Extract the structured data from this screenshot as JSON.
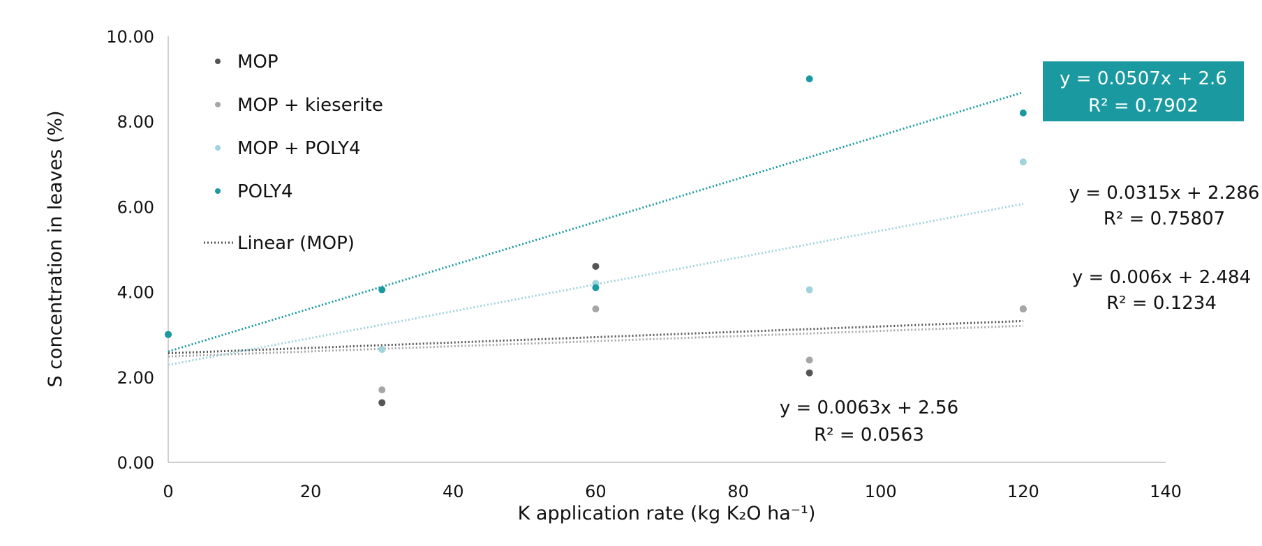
{
  "chart_data": {
    "type": "scatter",
    "xlabel": "K application rate (kg K₂O ha⁻¹)",
    "ylabel": "S concentration in leaves (%)",
    "xlim": [
      0,
      140
    ],
    "ylim": [
      0,
      10
    ],
    "x_ticks": [
      "0",
      "20",
      "40",
      "60",
      "80",
      "100",
      "120",
      "140"
    ],
    "y_ticks": [
      "0.00",
      "2.00",
      "4.00",
      "6.00",
      "8.00",
      "10.00"
    ],
    "grid": false,
    "legend_position": "top-left",
    "series": [
      {
        "name": "MOP",
        "color": "#555555",
        "points": [
          {
            "x": 0,
            "y": 3.0
          },
          {
            "x": 30,
            "y": 1.4
          },
          {
            "x": 60,
            "y": 4.6
          },
          {
            "x": 90,
            "y": 2.1
          },
          {
            "x": 120,
            "y": 3.6
          }
        ],
        "trend": {
          "slope": 0.0063,
          "intercept": 2.56,
          "color": "#555555",
          "equation": "y = 0.0063x + 2.56",
          "r2": "R² = 0.0563"
        }
      },
      {
        "name": "MOP + kieserite",
        "color": "#a6a6a6",
        "points": [
          {
            "x": 0,
            "y": 3.0
          },
          {
            "x": 30,
            "y": 1.7
          },
          {
            "x": 60,
            "y": 3.6
          },
          {
            "x": 90,
            "y": 2.4
          },
          {
            "x": 120,
            "y": 3.6
          }
        ],
        "trend": {
          "slope": 0.006,
          "intercept": 2.484,
          "color": "#a6a6a6",
          "equation": "y = 0.006x + 2.484",
          "r2": "R² = 0.1234"
        }
      },
      {
        "name": "MOP + POLY4",
        "color": "#9fd4dc",
        "points": [
          {
            "x": 0,
            "y": 3.0
          },
          {
            "x": 30,
            "y": 2.65
          },
          {
            "x": 60,
            "y": 4.2
          },
          {
            "x": 90,
            "y": 4.05
          },
          {
            "x": 120,
            "y": 7.05
          }
        ],
        "trend": {
          "slope": 0.0315,
          "intercept": 2.286,
          "color": "#9fd4dc",
          "equation": "y = 0.0315x + 2.286",
          "r2": "R² = 0.75807"
        }
      },
      {
        "name": "POLY4",
        "color": "#1a9aa0",
        "points": [
          {
            "x": 0,
            "y": 3.0
          },
          {
            "x": 30,
            "y": 4.05
          },
          {
            "x": 60,
            "y": 4.1
          },
          {
            "x": 90,
            "y": 9.0
          },
          {
            "x": 120,
            "y": 8.2
          }
        ],
        "trend": {
          "slope": 0.0507,
          "intercept": 2.6,
          "color": "#1a9aa0",
          "equation": "y = 0.0507x + 2.6",
          "r2": "R² = 0.7902"
        }
      }
    ],
    "legend": [
      {
        "label": "MOP",
        "type": "marker",
        "color": "#555555"
      },
      {
        "label": "MOP + kieserite",
        "type": "marker",
        "color": "#a6a6a6"
      },
      {
        "label": "MOP + POLY4",
        "type": "marker",
        "color": "#9fd4dc"
      },
      {
        "label": "POLY4",
        "type": "marker",
        "color": "#1a9aa0"
      },
      {
        "label": "Linear  (MOP)",
        "type": "dotted-line",
        "color": "#555555"
      }
    ],
    "annotation_box_color": "#1a9aa0"
  }
}
